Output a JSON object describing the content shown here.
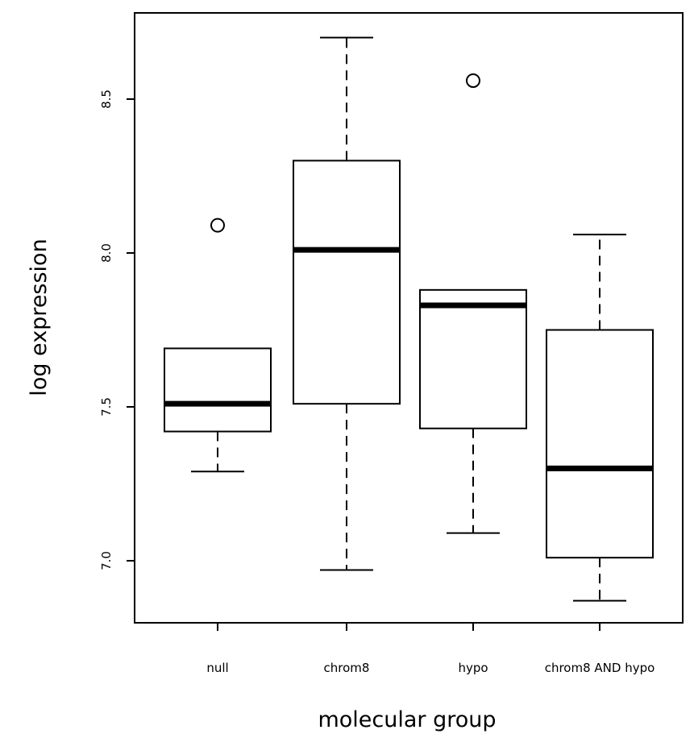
{
  "chart_data": {
    "type": "boxplot",
    "xlabel": "molecular group",
    "ylabel": "log expression",
    "ylim": [
      6.8,
      8.7
    ],
    "y_ticks": [
      7.0,
      7.5,
      8.0,
      8.5
    ],
    "y_tick_labels": [
      "7.0",
      "7.5",
      "8.0",
      "8.5"
    ],
    "grid": false,
    "legend": "none",
    "categories": [
      "null",
      "chrom8",
      "hypo",
      "chrom8 AND hypo"
    ],
    "boxes": [
      {
        "category": "null",
        "whisker_low": 7.29,
        "q1": 7.42,
        "median": 7.51,
        "q3": 7.69,
        "whisker_high": 7.69,
        "outliers": [
          8.09
        ]
      },
      {
        "category": "chrom8",
        "whisker_low": 6.97,
        "q1": 7.51,
        "median": 8.01,
        "q3": 8.3,
        "whisker_high": 8.7,
        "outliers": []
      },
      {
        "category": "hypo",
        "whisker_low": 7.09,
        "q1": 7.43,
        "median": 7.83,
        "q3": 7.88,
        "whisker_high": 7.88,
        "outliers": [
          8.56
        ]
      },
      {
        "category": "chrom8 AND hypo",
        "whisker_low": 6.87,
        "q1": 7.01,
        "median": 7.3,
        "q3": 7.75,
        "whisker_high": 8.06,
        "outliers": []
      }
    ],
    "colors": {
      "box_fill": "#ffffff",
      "stroke": "#000000"
    }
  }
}
